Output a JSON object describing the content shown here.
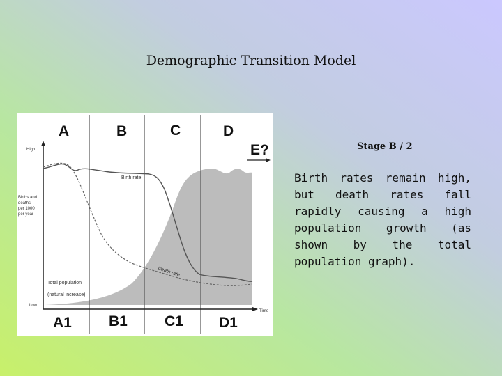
{
  "slide": {
    "title": "Demographic Transition Model",
    "stage_heading": "Stage B / 2",
    "description": "Birth rates remain high, but death rates fall rapidly causing a high population growth (as shown by the total population graph)."
  },
  "figure": {
    "top_labels": [
      "A",
      "B",
      "C",
      "D"
    ],
    "extra_label": "E?",
    "bottom_labels": [
      "A1",
      "B1",
      "C1",
      "D1"
    ],
    "y_axis_high": "High",
    "y_axis_low": "Low",
    "y_axis_title_lines": [
      "Births and",
      "deaths",
      "per 1000",
      "per year"
    ],
    "x_axis_title": "Time",
    "birth_rate_label": "Birth rate",
    "death_rate_label": "Death rate",
    "total_population_label": "Total population",
    "natural_increase_label": "(natural increase)"
  }
}
